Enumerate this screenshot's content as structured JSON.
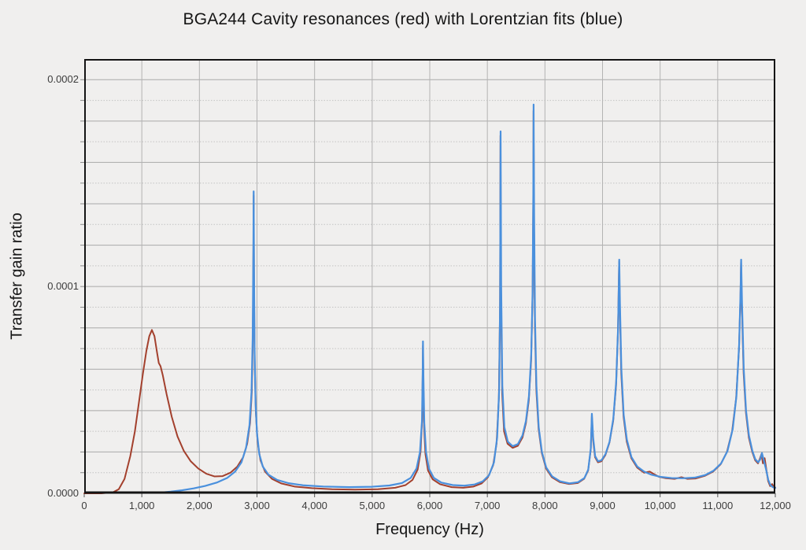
{
  "chart_data": {
    "type": "line",
    "title": "BGA244 Cavity resonances (red) with Lorentzian fits (blue)",
    "xlabel": "Frequency (Hz)",
    "ylabel": "Transfer gain ratio",
    "xlim": [
      0,
      12000
    ],
    "ylim": [
      0,
      0.00021
    ],
    "grid": true,
    "minor_y_gridline_step": 1e-05,
    "x_gridline_step": 1000,
    "legend_position": "in-title",
    "x_ticks": [
      0,
      1000,
      2000,
      3000,
      4000,
      5000,
      6000,
      7000,
      8000,
      9000,
      10000,
      11000,
      12000
    ],
    "x_tick_labels": [
      "0",
      "1,000",
      "2,000",
      "3,000",
      "4,000",
      "5,000",
      "6,000",
      "7,000",
      "8,000",
      "9,000",
      "10,000",
      "11,000",
      "12,000"
    ],
    "y_ticks": [
      0,
      0.0001,
      0.0002
    ],
    "y_tick_labels": [
      "0.0000",
      "0.0001",
      "0.0002"
    ],
    "series": [
      {
        "name": "Cavity resonances (red, measured)",
        "color": "#a3402d",
        "points": [
          [
            0,
            0
          ],
          [
            300,
            0
          ],
          [
            500,
            5e-07
          ],
          [
            600,
            2e-06
          ],
          [
            700,
            7e-06
          ],
          [
            800,
            1.8e-05
          ],
          [
            880,
            3e-05
          ],
          [
            950,
            4.4e-05
          ],
          [
            1020,
            5.8e-05
          ],
          [
            1080,
            6.9e-05
          ],
          [
            1130,
            7.6e-05
          ],
          [
            1175,
            7.9e-05
          ],
          [
            1220,
            7.6e-05
          ],
          [
            1265,
            6.8e-05
          ],
          [
            1295,
            6.3e-05
          ],
          [
            1325,
            6.15e-05
          ],
          [
            1365,
            5.7e-05
          ],
          [
            1430,
            4.8e-05
          ],
          [
            1520,
            3.7e-05
          ],
          [
            1620,
            2.75e-05
          ],
          [
            1730,
            2.05e-05
          ],
          [
            1850,
            1.55e-05
          ],
          [
            1980,
            1.2e-05
          ],
          [
            2120,
            9.5e-06
          ],
          [
            2260,
            8.2e-06
          ],
          [
            2400,
            8.3e-06
          ],
          [
            2540,
            1e-05
          ],
          [
            2660,
            1.3e-05
          ],
          [
            2760,
            1.75e-05
          ],
          [
            2830,
            2.4e-05
          ],
          [
            2880,
            3.4e-05
          ],
          [
            2910,
            4.9e-05
          ],
          [
            2928,
            7.5e-05
          ],
          [
            2938,
            0.00012
          ],
          [
            2942,
            0.000144
          ],
          [
            2948,
            0.000105
          ],
          [
            2960,
            6.4e-05
          ],
          [
            2980,
            3.9e-05
          ],
          [
            3010,
            2.5e-05
          ],
          [
            3060,
            1.6e-05
          ],
          [
            3140,
            1.05e-05
          ],
          [
            3260,
            7e-06
          ],
          [
            3420,
            4.8e-06
          ],
          [
            3650,
            3.3e-06
          ],
          [
            3950,
            2.5e-06
          ],
          [
            4300,
            2e-06
          ],
          [
            4700,
            1.8e-06
          ],
          [
            5100,
            2e-06
          ],
          [
            5400,
            2.7e-06
          ],
          [
            5580,
            4e-06
          ],
          [
            5700,
            6.5e-06
          ],
          [
            5790,
            1.15e-05
          ],
          [
            5840,
            2e-05
          ],
          [
            5868,
            3.6e-05
          ],
          [
            5878,
            6e-05
          ],
          [
            5882,
            7.15e-05
          ],
          [
            5888,
            5.5e-05
          ],
          [
            5900,
            3.3e-05
          ],
          [
            5925,
            1.9e-05
          ],
          [
            5970,
            1.1e-05
          ],
          [
            6050,
            6.8e-06
          ],
          [
            6180,
            4.4e-06
          ],
          [
            6380,
            3e-06
          ],
          [
            6580,
            2.7e-06
          ],
          [
            6760,
            3.3e-06
          ],
          [
            6900,
            4.8e-06
          ],
          [
            7010,
            7.8e-06
          ],
          [
            7100,
            1.35e-05
          ],
          [
            7160,
            2.4e-05
          ],
          [
            7200,
            4.6e-05
          ],
          [
            7220,
            9e-05
          ],
          [
            7228,
            0.000173
          ],
          [
            7238,
            9.5e-05
          ],
          [
            7258,
            4.8e-05
          ],
          [
            7290,
            3e-05
          ],
          [
            7350,
            2.4e-05
          ],
          [
            7440,
            2.2e-05
          ],
          [
            7530,
            2.3e-05
          ],
          [
            7610,
            2.7e-05
          ],
          [
            7670,
            3.4e-05
          ],
          [
            7720,
            4.5e-05
          ],
          [
            7760,
            6.4e-05
          ],
          [
            7785,
            9.5e-05
          ],
          [
            7797,
            0.00014
          ],
          [
            7802,
            0.000185
          ],
          [
            7810,
            0.00013
          ],
          [
            7825,
            8.2e-05
          ],
          [
            7850,
            5e-05
          ],
          [
            7890,
            3.1e-05
          ],
          [
            7945,
            1.95e-05
          ],
          [
            8020,
            1.2e-05
          ],
          [
            8120,
            7.8e-06
          ],
          [
            8260,
            5.4e-06
          ],
          [
            8420,
            4.5e-06
          ],
          [
            8570,
            5e-06
          ],
          [
            8680,
            7e-06
          ],
          [
            8750,
            1.1e-05
          ],
          [
            8795,
            2.1e-05
          ],
          [
            8815,
            3.75e-05
          ],
          [
            8835,
            2.6e-05
          ],
          [
            8870,
            1.75e-05
          ],
          [
            8920,
            1.5e-05
          ],
          [
            8980,
            1.55e-05
          ],
          [
            9050,
            1.85e-05
          ],
          [
            9120,
            2.45e-05
          ],
          [
            9185,
            3.5e-05
          ],
          [
            9235,
            5.2e-05
          ],
          [
            9268,
            7.8e-05
          ],
          [
            9288,
            0.000112
          ],
          [
            9300,
            9e-05
          ],
          [
            9325,
            5.8e-05
          ],
          [
            9365,
            3.7e-05
          ],
          [
            9420,
            2.5e-05
          ],
          [
            9500,
            1.7e-05
          ],
          [
            9600,
            1.25e-05
          ],
          [
            9720,
            1e-05
          ],
          [
            9820,
            1.05e-05
          ],
          [
            9880,
            9.5e-06
          ],
          [
            9980,
            8e-06
          ],
          [
            10100,
            7.3e-06
          ],
          [
            10250,
            7e-06
          ],
          [
            10370,
            7.8e-06
          ],
          [
            10470,
            7e-06
          ],
          [
            10620,
            7.2e-06
          ],
          [
            10780,
            8.5e-06
          ],
          [
            10920,
            1.05e-05
          ],
          [
            11050,
            1.4e-05
          ],
          [
            11160,
            2e-05
          ],
          [
            11250,
            3e-05
          ],
          [
            11320,
            4.6e-05
          ],
          [
            11370,
            7e-05
          ],
          [
            11395,
            9.5e-05
          ],
          [
            11405,
            0.000112
          ],
          [
            11420,
            9e-05
          ],
          [
            11450,
            5.8e-05
          ],
          [
            11490,
            3.9e-05
          ],
          [
            11540,
            2.7e-05
          ],
          [
            11600,
            2e-05
          ],
          [
            11650,
            1.6e-05
          ],
          [
            11700,
            1.45e-05
          ],
          [
            11735,
            1.7e-05
          ],
          [
            11760,
            1.9e-05
          ],
          [
            11785,
            1.45e-05
          ],
          [
            11815,
            1.7e-05
          ],
          [
            11845,
            1.15e-05
          ],
          [
            11875,
            6e-06
          ],
          [
            11910,
            3.5e-06
          ],
          [
            11945,
            4.5e-06
          ],
          [
            11975,
            3e-06
          ],
          [
            12000,
            2.8e-06
          ]
        ]
      },
      {
        "name": "Lorentzian fits (blue)",
        "color": "#4a90dd",
        "points": [
          [
            1300,
            3e-07
          ],
          [
            1500,
            8e-07
          ],
          [
            1700,
            1.5e-06
          ],
          [
            1900,
            2.4e-06
          ],
          [
            2100,
            3.6e-06
          ],
          [
            2300,
            5.2e-06
          ],
          [
            2480,
            7.4e-06
          ],
          [
            2620,
            1.05e-05
          ],
          [
            2730,
            1.5e-05
          ],
          [
            2810,
            2.2e-05
          ],
          [
            2870,
            3.3e-05
          ],
          [
            2905,
            4.9e-05
          ],
          [
            2925,
            7.5e-05
          ],
          [
            2938,
            0.00012
          ],
          [
            2942,
            0.000146
          ],
          [
            2948,
            0.00011
          ],
          [
            2958,
            7e-05
          ],
          [
            2975,
            4.4e-05
          ],
          [
            3000,
            2.9e-05
          ],
          [
            3040,
            1.9e-05
          ],
          [
            3100,
            1.3e-05
          ],
          [
            3200,
            9e-06
          ],
          [
            3350,
            6.5e-06
          ],
          [
            3550,
            4.9e-06
          ],
          [
            3800,
            3.9e-06
          ],
          [
            4150,
            3.3e-06
          ],
          [
            4600,
            3e-06
          ],
          [
            5000,
            3.2e-06
          ],
          [
            5300,
            3.8e-06
          ],
          [
            5520,
            5e-06
          ],
          [
            5670,
            7.5e-06
          ],
          [
            5770,
            1.2e-05
          ],
          [
            5830,
            2e-05
          ],
          [
            5865,
            3.5e-05
          ],
          [
            5878,
            6e-05
          ],
          [
            5882,
            7.35e-05
          ],
          [
            5890,
            5.6e-05
          ],
          [
            5905,
            3.4e-05
          ],
          [
            5935,
            2e-05
          ],
          [
            5985,
            1.2e-05
          ],
          [
            6070,
            7.5e-06
          ],
          [
            6200,
            5.2e-06
          ],
          [
            6400,
            4e-06
          ],
          [
            6600,
            3.7e-06
          ],
          [
            6780,
            4.3e-06
          ],
          [
            6920,
            5.8e-06
          ],
          [
            7030,
            8.8e-06
          ],
          [
            7115,
            1.5e-05
          ],
          [
            7170,
            2.7e-05
          ],
          [
            7205,
            5e-05
          ],
          [
            7222,
            9.5e-05
          ],
          [
            7230,
            0.000175
          ],
          [
            7240,
            0.0001
          ],
          [
            7260,
            5.2e-05
          ],
          [
            7295,
            3.2e-05
          ],
          [
            7355,
            2.5e-05
          ],
          [
            7440,
            2.28e-05
          ],
          [
            7530,
            2.38e-05
          ],
          [
            7610,
            2.8e-05
          ],
          [
            7670,
            3.5e-05
          ],
          [
            7722,
            4.7e-05
          ],
          [
            7762,
            6.7e-05
          ],
          [
            7786,
            9.8e-05
          ],
          [
            7798,
            0.000145
          ],
          [
            7803,
            0.000188
          ],
          [
            7812,
            0.000135
          ],
          [
            7827,
            8.5e-05
          ],
          [
            7852,
            5.2e-05
          ],
          [
            7892,
            3.2e-05
          ],
          [
            7947,
            2e-05
          ],
          [
            8022,
            1.25e-05
          ],
          [
            8125,
            8.2e-06
          ],
          [
            8265,
            5.8e-06
          ],
          [
            8425,
            4.8e-06
          ],
          [
            8575,
            5.4e-06
          ],
          [
            8685,
            7.4e-06
          ],
          [
            8752,
            1.15e-05
          ],
          [
            8797,
            2.2e-05
          ],
          [
            8815,
            3.85e-05
          ],
          [
            8837,
            2.7e-05
          ],
          [
            8872,
            1.8e-05
          ],
          [
            8922,
            1.55e-05
          ],
          [
            8982,
            1.6e-05
          ],
          [
            9052,
            1.9e-05
          ],
          [
            9122,
            2.5e-05
          ],
          [
            9187,
            3.6e-05
          ],
          [
            9237,
            5.4e-05
          ],
          [
            9270,
            8e-05
          ],
          [
            9290,
            0.000113
          ],
          [
            9302,
            9.2e-05
          ],
          [
            9327,
            6e-05
          ],
          [
            9367,
            3.8e-05
          ],
          [
            9422,
            2.6e-05
          ],
          [
            9502,
            1.75e-05
          ],
          [
            9602,
            1.3e-05
          ],
          [
            9722,
            1.05e-05
          ],
          [
            9850,
            9e-06
          ],
          [
            10000,
            8e-06
          ],
          [
            10200,
            7.4e-06
          ],
          [
            10400,
            7.3e-06
          ],
          [
            10600,
            7.6e-06
          ],
          [
            10780,
            8.8e-06
          ],
          [
            10930,
            1.1e-05
          ],
          [
            11060,
            1.45e-05
          ],
          [
            11170,
            2.05e-05
          ],
          [
            11260,
            3.1e-05
          ],
          [
            11325,
            4.7e-05
          ],
          [
            11372,
            7.2e-05
          ],
          [
            11397,
            9.8e-05
          ],
          [
            11407,
            0.000113
          ],
          [
            11422,
            9.2e-05
          ],
          [
            11452,
            6e-05
          ],
          [
            11492,
            4e-05
          ],
          [
            11542,
            2.8e-05
          ],
          [
            11602,
            2.05e-05
          ],
          [
            11652,
            1.65e-05
          ],
          [
            11702,
            1.5e-05
          ],
          [
            11740,
            1.65e-05
          ],
          [
            11768,
            1.95e-05
          ],
          [
            11800,
            1.6e-05
          ],
          [
            11840,
            1.15e-05
          ],
          [
            11878,
            6.5e-06
          ],
          [
            11915,
            4e-06
          ],
          [
            11955,
            3e-06
          ],
          [
            12000,
            2.6e-06
          ]
        ]
      }
    ]
  }
}
